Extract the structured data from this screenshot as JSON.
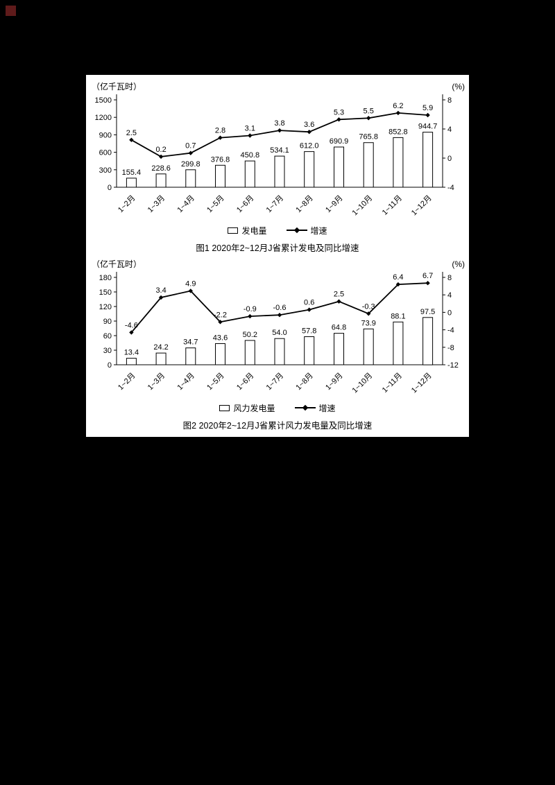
{
  "decor": {
    "corner_color": "#5f1b1b",
    "page_background": "#000000",
    "panel_background": "#ffffff"
  },
  "chart_data": [
    {
      "type": "bar+line",
      "caption": "图1  2020年2~12月J省累计发电及同比增速",
      "categories": [
        "1~2月",
        "1~3月",
        "1~4月",
        "1~5月",
        "1~6月",
        "1~7月",
        "1~8月",
        "1~9月",
        "1~10月",
        "1~11月",
        "1~12月"
      ],
      "series": [
        {
          "name": "发电量",
          "type": "bar",
          "axis": "left",
          "values": [
            155.4,
            228.6,
            299.8,
            376.8,
            450.8,
            534.1,
            612.0,
            690.9,
            765.8,
            852.8,
            944.7
          ]
        },
        {
          "name": "增速",
          "type": "line",
          "axis": "right",
          "values": [
            2.5,
            0.2,
            0.7,
            2.8,
            3.1,
            3.8,
            3.6,
            5.3,
            5.5,
            6.2,
            5.9
          ]
        }
      ],
      "left_axis": {
        "label": "（亿千瓦时）",
        "min": 0,
        "max": 1500,
        "ticks": [
          0,
          300,
          600,
          900,
          1200,
          1500
        ]
      },
      "right_axis": {
        "label": "(%)",
        "min": -4,
        "max": 8,
        "ticks": [
          -4,
          0,
          4,
          8
        ]
      },
      "grid": false,
      "legend_position": "bottom"
    },
    {
      "type": "bar+line",
      "caption": "图2  2020年2~12月J省累计风力发电量及同比增速",
      "categories": [
        "1~2月",
        "1~3月",
        "1~4月",
        "1~5月",
        "1~6月",
        "1~7月",
        "1~8月",
        "1~9月",
        "1~10月",
        "1~11月",
        "1~12月"
      ],
      "series": [
        {
          "name": "风力发电量",
          "type": "bar",
          "axis": "left",
          "values": [
            13.4,
            24.2,
            34.7,
            43.6,
            50.2,
            54.0,
            57.8,
            64.8,
            73.9,
            88.1,
            97.5
          ]
        },
        {
          "name": "增速",
          "type": "line",
          "axis": "right",
          "values": [
            -4.6,
            3.4,
            4.9,
            -2.2,
            -0.9,
            -0.6,
            0.6,
            2.5,
            -0.3,
            6.4,
            6.7
          ]
        }
      ],
      "left_axis": {
        "label": "（亿千瓦时）",
        "min": 0,
        "max": 180,
        "ticks": [
          0,
          30,
          60,
          90,
          120,
          150,
          180
        ]
      },
      "right_axis": {
        "label": "(%)",
        "min": -12,
        "max": 8,
        "ticks": [
          -12,
          -8,
          -4,
          0,
          4,
          8
        ]
      },
      "grid": false,
      "legend_position": "bottom"
    }
  ]
}
